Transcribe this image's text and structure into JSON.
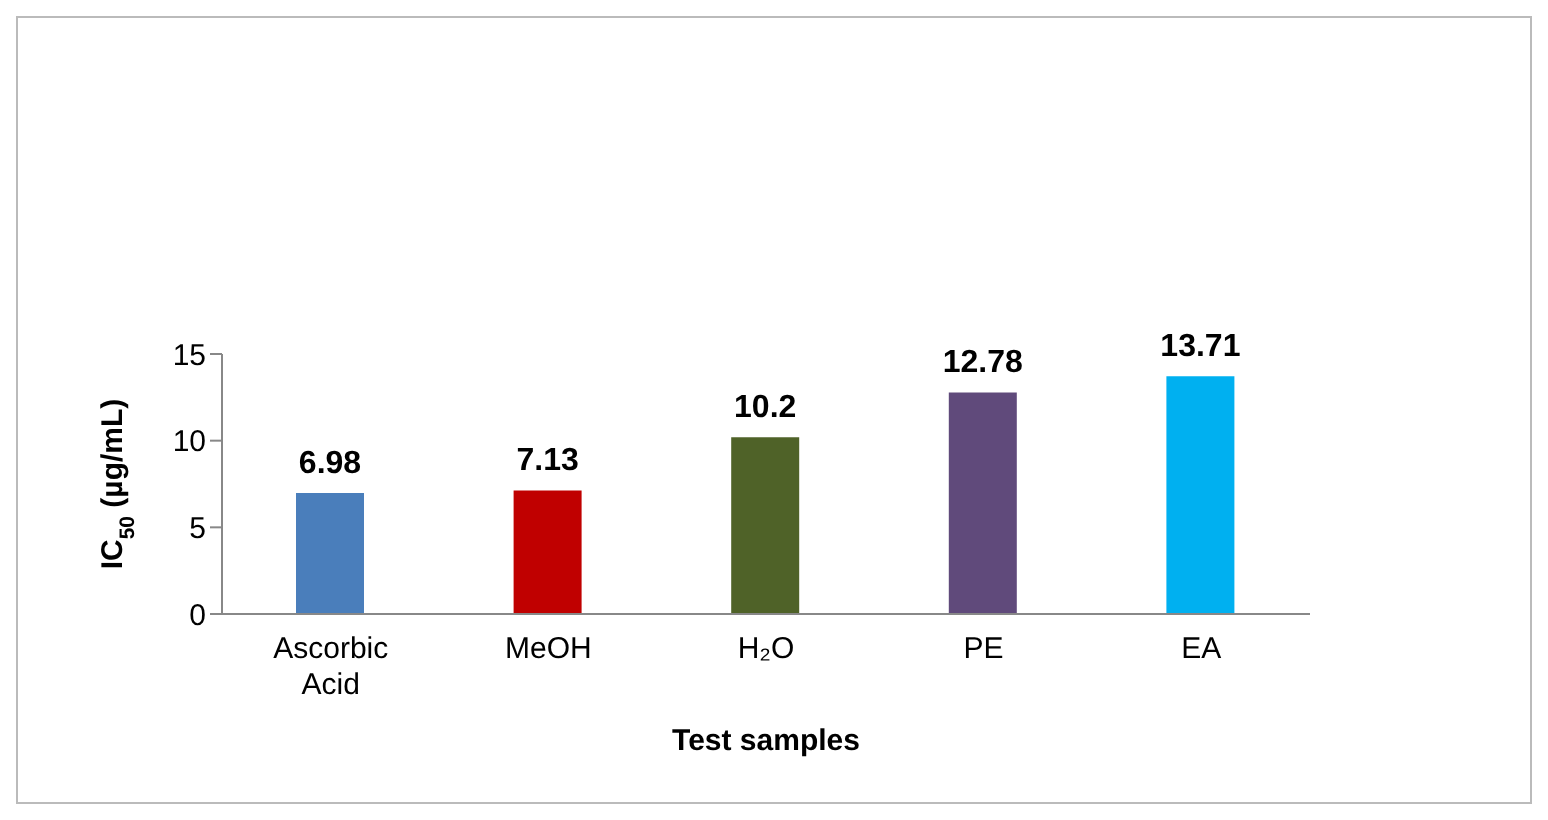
{
  "chart_data": {
    "type": "bar",
    "categories": [
      "Ascorbic Acid",
      "MeOH",
      "H₂O",
      "PE",
      "EA"
    ],
    "values": [
      6.98,
      7.13,
      10.2,
      12.78,
      13.71
    ],
    "colors": [
      "#4a7ebb",
      "#c00000",
      "#4f6228",
      "#604a7b",
      "#00b0f0"
    ],
    "xlabel": "Test samples",
    "ylabel": "IC$_{50}$ (µg/mL)",
    "ylim": [
      0,
      15
    ],
    "yticks": [
      0,
      5,
      10,
      15
    ],
    "data_labels": true,
    "grid": false,
    "legend": false
  }
}
